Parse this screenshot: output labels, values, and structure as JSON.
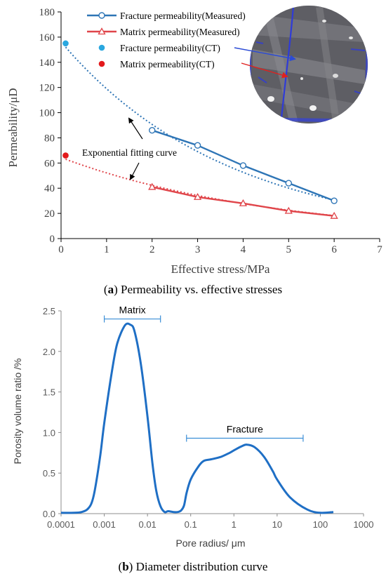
{
  "chart_data": [
    {
      "type": "line",
      "caption_letter": "a",
      "caption_text": "Permeability vs. effective stresses",
      "xlabel": "Effective stress/MPa",
      "ylabel": "Permeability/μD",
      "xlim": [
        0,
        7
      ],
      "ylim": [
        0,
        180
      ],
      "xticks": [
        "0",
        "1",
        "2",
        "3",
        "4",
        "5",
        "6",
        "7"
      ],
      "yticks": [
        "0",
        "20",
        "40",
        "60",
        "80",
        "100",
        "120",
        "140",
        "160",
        "180"
      ],
      "grid": false,
      "legend_position": "top-center",
      "series": [
        {
          "name": "Fracture permeability(Measured)",
          "color": "#2E75B6",
          "marker": "circle-open",
          "x": [
            2,
            3,
            4,
            5,
            6
          ],
          "y": [
            86,
            74,
            58,
            44,
            30
          ]
        },
        {
          "name": "Matrix permeability(Measured)",
          "color": "#E0454A",
          "marker": "triangle-open",
          "x": [
            2,
            3,
            4,
            5,
            6
          ],
          "y": [
            41,
            33,
            28,
            22,
            18
          ]
        },
        {
          "name": "Fracture permeability(CT)",
          "color": "#2AA7DF",
          "marker": "dot",
          "x": [
            0.1
          ],
          "y": [
            155
          ]
        },
        {
          "name": "Matrix permeability(CT)",
          "color": "#E31A1C",
          "marker": "dot",
          "x": [
            0.1
          ],
          "y": [
            66
          ]
        }
      ],
      "fits": [
        {
          "color": "#2E75B6",
          "y0": 152,
          "k": 0.272
        },
        {
          "color": "#E0454A",
          "y0": 63,
          "k": 0.21
        }
      ],
      "annotation": "Exponential fitting curve",
      "inset_image": "ct-scan-circular-image"
    },
    {
      "type": "line",
      "caption_letter": "b",
      "caption_text": "Diameter distribution curve",
      "xlabel": "Pore radius/ μm",
      "ylabel": "Porosity volume ratio /%",
      "xscale": "log",
      "xlim": [
        0.0001,
        1000
      ],
      "ylim": [
        0,
        2.5
      ],
      "xticks": [
        "0.0001",
        "0.001",
        "0.01",
        "0.1",
        "1",
        "10",
        "100",
        "1000"
      ],
      "yticks": [
        "0.0",
        "0.5",
        "1.0",
        "1.5",
        "2.0",
        "2.5"
      ],
      "grid": false,
      "series": [
        {
          "color": "#1F6FC5",
          "x": [
            0.0001,
            0.0002,
            0.0003,
            0.0004,
            0.0005,
            0.0006,
            0.0008,
            0.001,
            0.0015,
            0.002,
            0.003,
            0.004,
            0.005,
            0.007,
            0.01,
            0.013,
            0.016,
            0.02,
            0.025,
            0.03,
            0.04,
            0.05,
            0.06,
            0.07,
            0.08,
            0.1,
            0.15,
            0.2,
            0.3,
            0.5,
            0.8,
            1,
            1.5,
            2,
            3,
            5,
            8,
            10,
            20,
            50,
            100,
            200
          ],
          "y": [
            0.01,
            0.01,
            0.02,
            0.05,
            0.12,
            0.28,
            0.7,
            1.12,
            1.75,
            2.1,
            2.32,
            2.33,
            2.25,
            1.85,
            1.2,
            0.62,
            0.28,
            0.09,
            0.02,
            0.03,
            0.02,
            0.02,
            0.04,
            0.1,
            0.25,
            0.42,
            0.58,
            0.65,
            0.67,
            0.7,
            0.75,
            0.78,
            0.83,
            0.85,
            0.82,
            0.7,
            0.52,
            0.42,
            0.2,
            0.05,
            0.01,
            0.02
          ]
        }
      ],
      "ranges": [
        {
          "label": "Matrix",
          "x": [
            0.001,
            0.02
          ],
          "y": 2.4
        },
        {
          "label": "Fracture",
          "x": [
            0.08,
            40
          ],
          "y": 0.93
        }
      ]
    }
  ]
}
